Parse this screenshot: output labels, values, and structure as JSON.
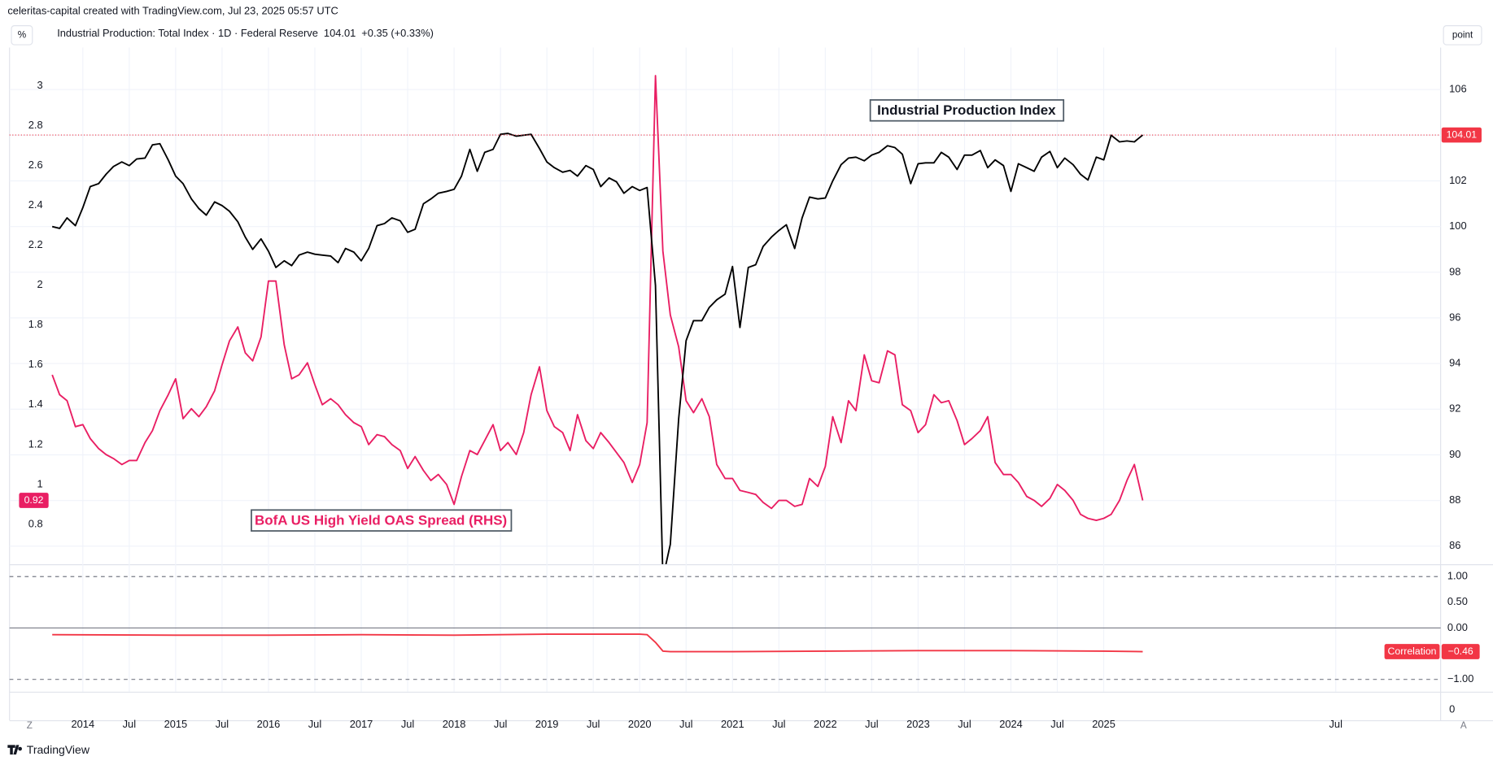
{
  "header": {
    "credit": "celeritas-capital created with TradingView.com, Jul 23, 2025 05:57 UTC",
    "left_unit": "%",
    "right_unit": "point",
    "legend_name": "Industrial Production: Total Index · 1D · Federal Reserve",
    "legend_change": "+0.35 (+0.33%)"
  },
  "footer": {
    "brand": "TradingView",
    "left_button": "Z",
    "right_button": "A"
  },
  "bottom_pane": {
    "yticks": [
      0
    ]
  },
  "chart_data": [
    {
      "type": "line",
      "annotations": [
        "Industrial Production Index",
        "BofA US High Yield OAS Spread (RHS)"
      ],
      "x": [
        2013.67,
        2013.75,
        2013.83,
        2013.92,
        2014,
        2014.08,
        2014.17,
        2014.25,
        2014.33,
        2014.42,
        2014.5,
        2014.58,
        2014.67,
        2014.75,
        2014.83,
        2014.92,
        2015,
        2015.08,
        2015.17,
        2015.25,
        2015.33,
        2015.42,
        2015.5,
        2015.58,
        2015.67,
        2015.75,
        2015.83,
        2015.92,
        2016,
        2016.08,
        2016.17,
        2016.25,
        2016.33,
        2016.42,
        2016.5,
        2016.58,
        2016.67,
        2016.75,
        2016.83,
        2016.92,
        2017,
        2017.08,
        2017.17,
        2017.25,
        2017.33,
        2017.42,
        2017.5,
        2017.58,
        2017.67,
        2017.75,
        2017.83,
        2017.92,
        2018,
        2018.08,
        2018.17,
        2018.25,
        2018.33,
        2018.42,
        2018.5,
        2018.58,
        2018.67,
        2018.75,
        2018.83,
        2018.92,
        2019,
        2019.08,
        2019.17,
        2019.25,
        2019.33,
        2019.42,
        2019.5,
        2019.58,
        2019.67,
        2019.75,
        2019.83,
        2019.92,
        2020,
        2020.08,
        2020.17,
        2020.25,
        2020.33,
        2020.42,
        2020.5,
        2020.58,
        2020.67,
        2020.75,
        2020.83,
        2020.92,
        2021,
        2021.08,
        2021.17,
        2021.25,
        2021.33,
        2021.42,
        2021.5,
        2021.58,
        2021.67,
        2021.75,
        2021.83,
        2021.92,
        2022,
        2022.08,
        2022.17,
        2022.25,
        2022.33,
        2022.42,
        2022.5,
        2022.58,
        2022.67,
        2022.75,
        2022.83,
        2022.92,
        2023,
        2023.08,
        2023.17,
        2023.25,
        2023.33,
        2023.42,
        2023.5,
        2023.58,
        2023.67,
        2023.75,
        2023.83,
        2023.92,
        2024,
        2024.08,
        2024.17,
        2024.25,
        2024.33,
        2024.42,
        2024.5,
        2024.58,
        2024.67,
        2024.75,
        2024.83,
        2024.92,
        2025,
        2025.08,
        2025.17,
        2025.25,
        2025.33,
        2025.42
      ],
      "series": [
        {
          "name": "BofA US High Yield OAS Spread (RHS)",
          "color": "#e91e63",
          "axis": "y",
          "values": [
            1.55,
            1.45,
            1.42,
            1.29,
            1.3,
            1.23,
            1.18,
            1.15,
            1.13,
            1.1,
            1.12,
            1.12,
            1.21,
            1.27,
            1.37,
            1.45,
            1.53,
            1.33,
            1.38,
            1.34,
            1.39,
            1.47,
            1.6,
            1.72,
            1.79,
            1.66,
            1.62,
            1.74,
            2.02,
            2.02,
            1.7,
            1.53,
            1.55,
            1.61,
            1.5,
            1.4,
            1.43,
            1.4,
            1.35,
            1.31,
            1.29,
            1.2,
            1.25,
            1.24,
            1.2,
            1.17,
            1.08,
            1.14,
            1.07,
            1.02,
            1.05,
            1.0,
            0.9,
            1.04,
            1.17,
            1.15,
            1.22,
            1.3,
            1.17,
            1.21,
            1.15,
            1.26,
            1.45,
            1.59,
            1.37,
            1.29,
            1.26,
            1.17,
            1.35,
            1.22,
            1.18,
            1.26,
            1.21,
            1.16,
            1.11,
            1.01,
            1.1,
            1.31,
            3.05,
            2.17,
            1.85,
            1.69,
            1.42,
            1.36,
            1.43,
            1.34,
            1.1,
            1.03,
            1.03,
            0.97,
            0.96,
            0.95,
            0.91,
            0.88,
            0.92,
            0.92,
            0.89,
            0.9,
            1.03,
            0.99,
            1.09,
            1.34,
            1.21,
            1.42,
            1.37,
            1.65,
            1.52,
            1.51,
            1.67,
            1.65,
            1.4,
            1.37,
            1.26,
            1.3,
            1.45,
            1.41,
            1.42,
            1.32,
            1.2,
            1.23,
            1.27,
            1.34,
            1.11,
            1.05,
            1.05,
            1.01,
            0.94,
            0.92,
            0.89,
            0.93,
            1.0,
            0.97,
            0.92,
            0.85,
            0.83,
            0.82,
            0.83,
            0.85,
            0.92,
            1.02,
            1.1,
            0.92
          ]
        },
        {
          "name": "Industrial Production Index",
          "color": "#000000",
          "axis": "y2",
          "values": [
            100.0,
            99.92,
            100.38,
            100.04,
            100.83,
            101.75,
            101.88,
            102.29,
            102.63,
            102.83,
            102.67,
            102.96,
            103.0,
            103.58,
            103.63,
            102.92,
            102.21,
            101.88,
            101.21,
            100.79,
            100.5,
            101.08,
            100.92,
            100.67,
            100.21,
            99.54,
            99.0,
            99.46,
            98.92,
            98.21,
            98.5,
            98.29,
            98.75,
            98.88,
            98.79,
            98.75,
            98.71,
            98.42,
            99.04,
            98.88,
            98.5,
            99.04,
            100.04,
            100.13,
            100.38,
            100.25,
            99.75,
            99.88,
            101.0,
            101.21,
            101.46,
            101.54,
            101.63,
            102.21,
            103.38,
            102.42,
            103.25,
            103.38,
            104.04,
            104.08,
            103.96,
            104.0,
            104.04,
            103.42,
            102.83,
            102.58,
            102.38,
            102.46,
            102.21,
            102.67,
            102.5,
            101.75,
            102.13,
            101.96,
            101.46,
            101.75,
            101.58,
            101.71,
            97.42,
            84.6,
            86.08,
            91.58,
            95.0,
            95.88,
            95.88,
            96.46,
            96.79,
            97.04,
            98.25,
            95.58,
            98.21,
            98.33,
            99.13,
            99.54,
            99.83,
            100.08,
            99.04,
            100.38,
            101.29,
            101.21,
            101.25,
            102.0,
            102.71,
            103.0,
            103.04,
            102.88,
            103.13,
            103.25,
            103.54,
            103.46,
            103.17,
            101.88,
            102.75,
            102.79,
            102.79,
            103.25,
            103.04,
            102.5,
            103.13,
            103.13,
            103.33,
            102.58,
            102.92,
            102.67,
            101.54,
            102.75,
            102.58,
            102.42,
            103.04,
            103.29,
            102.58,
            103.0,
            102.71,
            102.29,
            102.04,
            103.04,
            102.92,
            104.0,
            103.71,
            103.75,
            103.71,
            104.01
          ]
        }
      ],
      "xlim": [
        2013.21,
        2028.63
      ],
      "xticks": [
        2014,
        {
          "value": 2014.5,
          "label": "Jul"
        },
        2015,
        {
          "value": 2015.5,
          "label": "Jul"
        },
        2016,
        {
          "value": 2016.5,
          "label": "Jul"
        },
        2017,
        {
          "value": 2017.5,
          "label": "Jul"
        },
        2018,
        {
          "value": 2018.5,
          "label": "Jul"
        },
        2019,
        {
          "value": 2019.5,
          "label": "Jul"
        },
        2020,
        {
          "value": 2020.5,
          "label": "Jul"
        },
        2021,
        {
          "value": 2021.5,
          "label": "Jul"
        },
        2022,
        {
          "value": 2022.5,
          "label": "Jul"
        },
        2023,
        {
          "value": 2023.5,
          "label": "Jul"
        },
        2024,
        {
          "value": 2024.5,
          "label": "Jul"
        },
        2025,
        {
          "value": 2027.5,
          "label": "Jul"
        }
      ],
      "ylim": [
        0.6,
        3.167
      ],
      "yticks": [
        0.8,
        1,
        1.2,
        1.4,
        1.6,
        1.8,
        2,
        2.2,
        2.4,
        2.6,
        2.8,
        3
      ],
      "y2lim": [
        85.21,
        107.63
      ],
      "y2ticks": [
        86,
        88,
        90,
        92,
        94,
        96,
        98,
        100,
        102,
        104,
        106
      ],
      "grid": true,
      "price_line_color": "#f23645"
    },
    {
      "type": "line",
      "x": [
        2013.67,
        2015,
        2016,
        2017,
        2018,
        2019,
        2020,
        2020.08,
        2020.17,
        2020.25,
        2020.33,
        2021,
        2022,
        2023,
        2024,
        2025,
        2025.42
      ],
      "series": [
        {
          "name": "Correlation",
          "color": "#f23645",
          "values": [
            -0.13,
            -0.14,
            -0.14,
            -0.13,
            -0.14,
            -0.12,
            -0.12,
            -0.13,
            -0.28,
            -0.45,
            -0.46,
            -0.46,
            -0.45,
            -0.44,
            -0.44,
            -0.45,
            -0.46
          ],
          "value_label": "−0.46"
        }
      ],
      "xlim": [
        2013.21,
        2028.63
      ],
      "ylim": [
        -1.24,
        1.222
      ],
      "yticks": [
        {
          "value": 1,
          "label": "1.00"
        },
        {
          "value": 0.5,
          "label": "0.50"
        },
        {
          "value": 0,
          "label": "0.00"
        },
        {
          "value": -1,
          "label": "−1.00"
        }
      ]
    }
  ]
}
